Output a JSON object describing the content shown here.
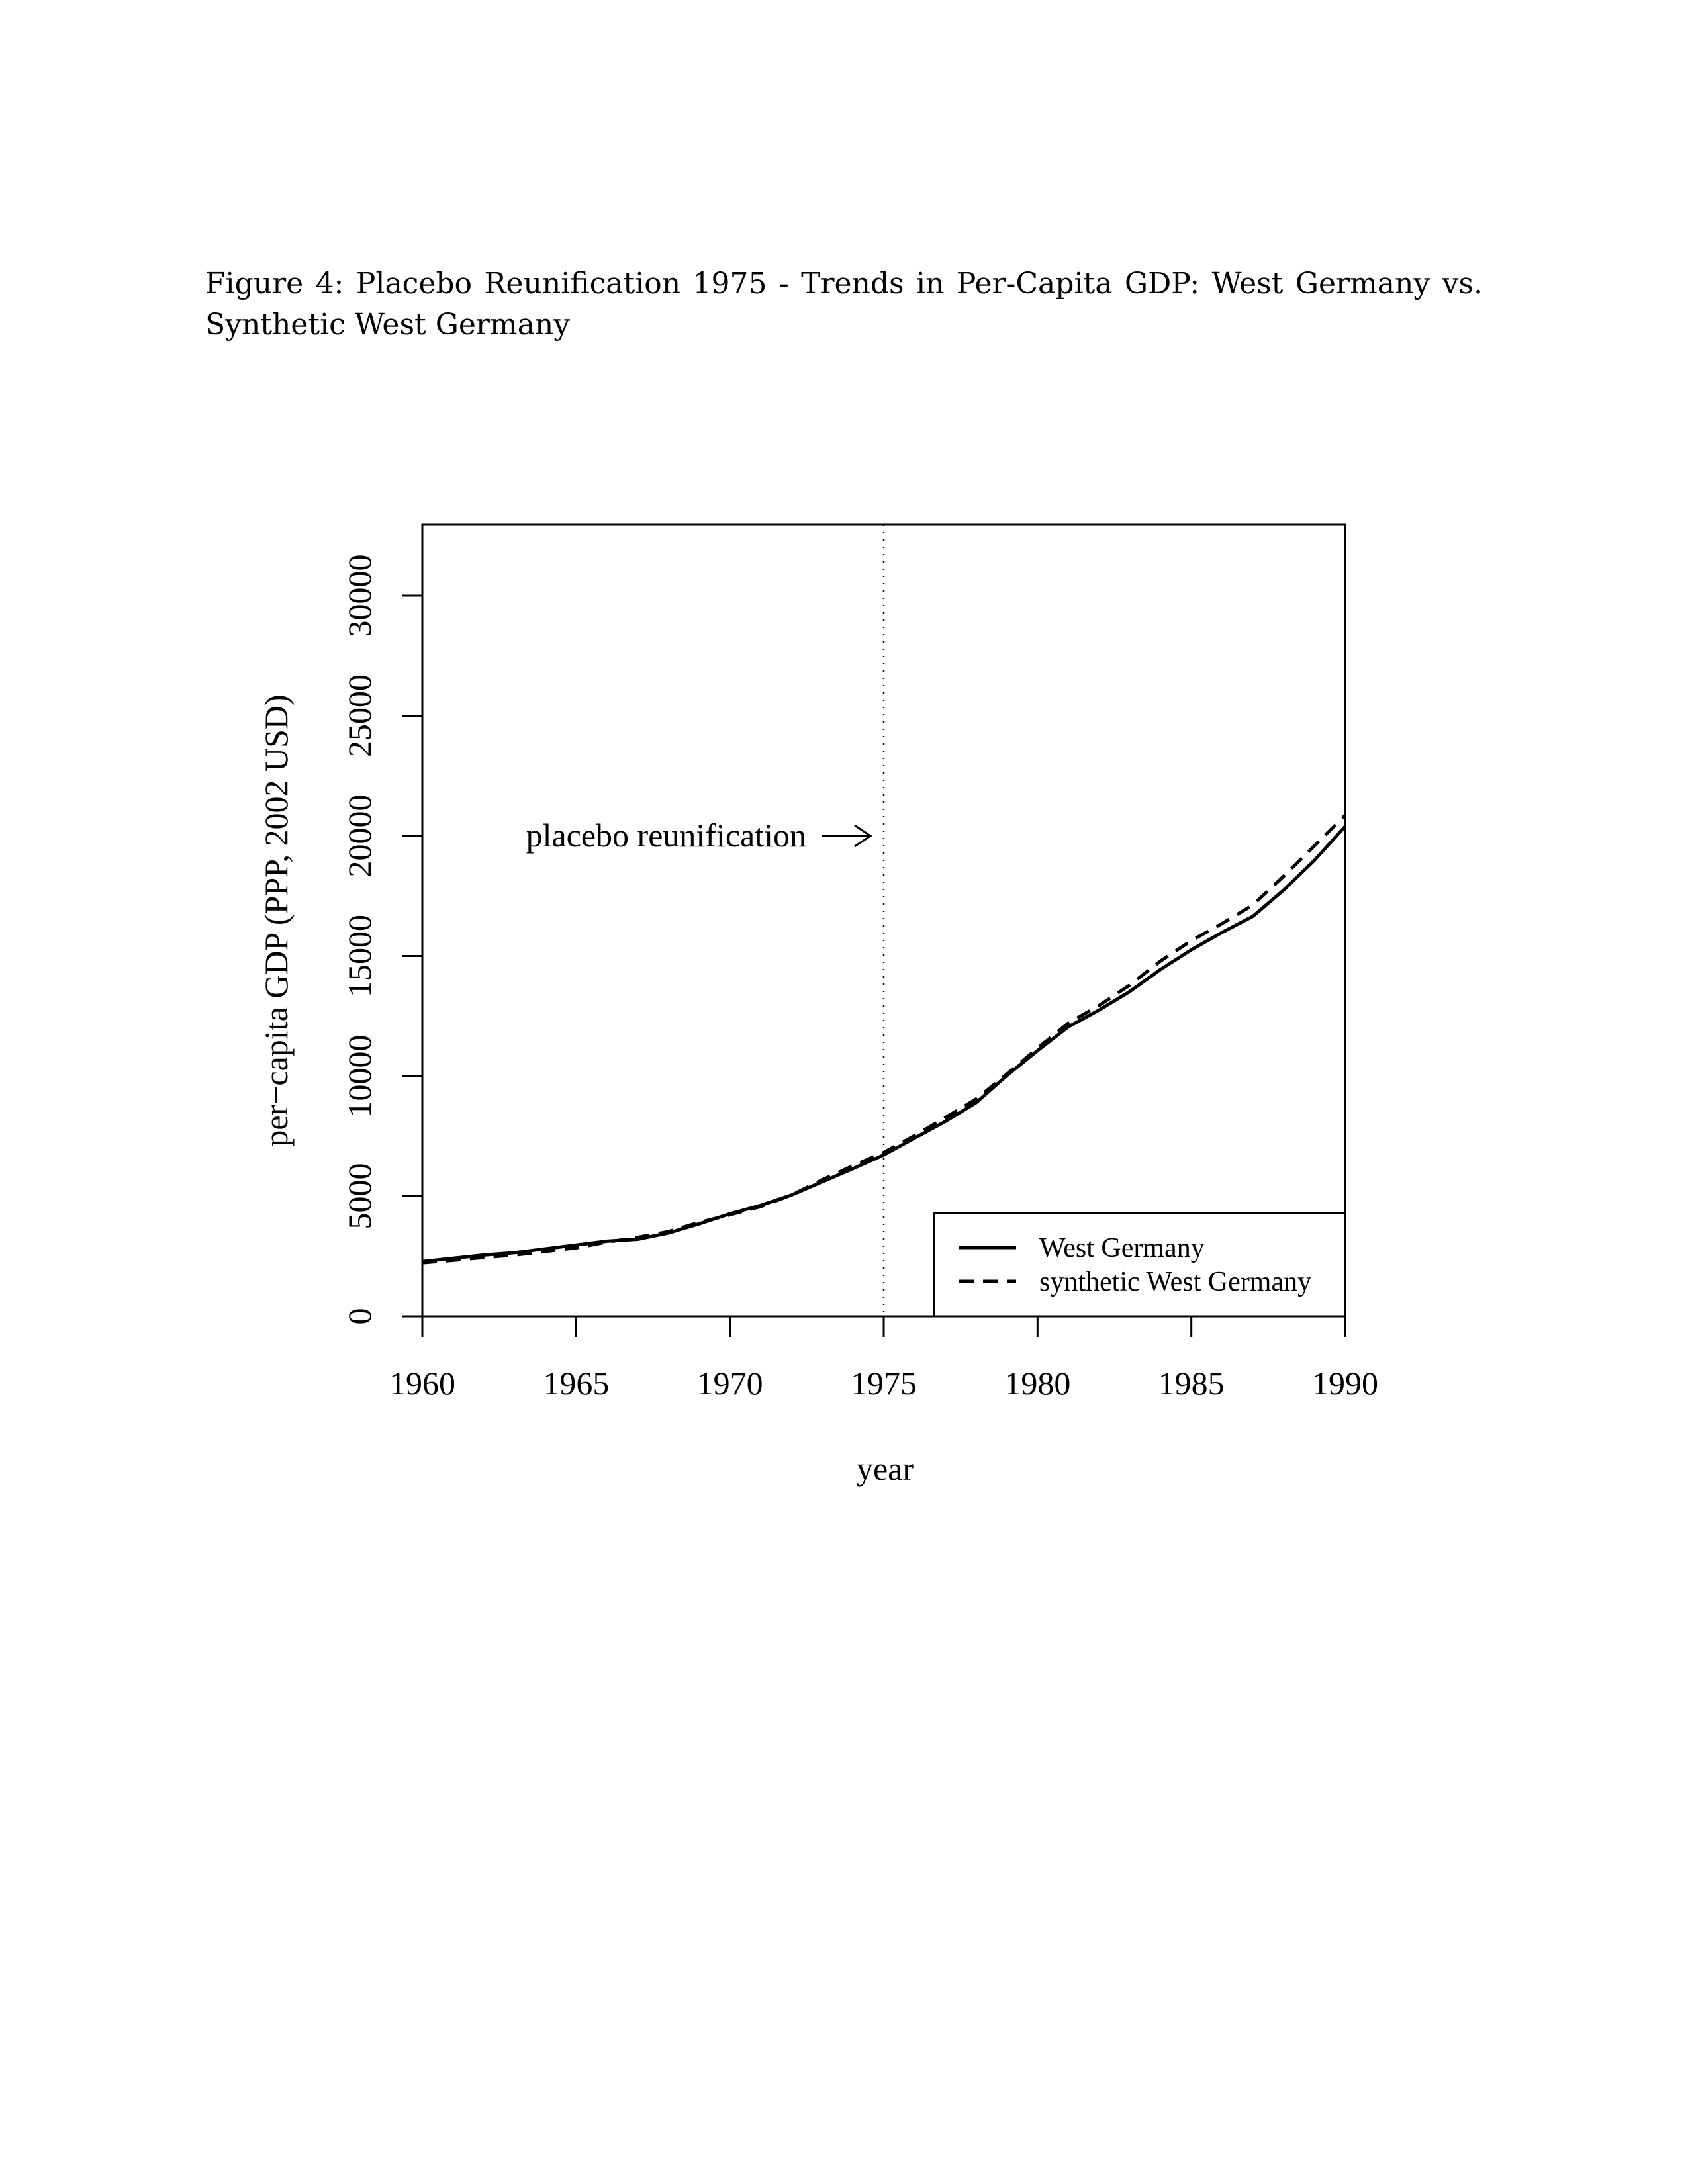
{
  "figure": {
    "caption_line1": "Figure 4: Placebo Reunification 1975 - Trends in Per-Capita GDP: West Germany vs.",
    "caption_line2": "Synthetic West Germany"
  },
  "chart_data": {
    "type": "line",
    "xlabel": "year",
    "ylabel": "per−capita GDP (PPP, 2002 USD)",
    "xlim": [
      1960,
      1990
    ],
    "ylim": [
      0,
      33000
    ],
    "x_ticks": [
      "1960",
      "1965",
      "1970",
      "1975",
      "1980",
      "1985",
      "1990"
    ],
    "y_ticks": [
      "0",
      "5000",
      "10000",
      "15000",
      "20000",
      "25000",
      "30000"
    ],
    "x": [
      1960,
      1961,
      1962,
      1963,
      1964,
      1965,
      1966,
      1967,
      1968,
      1969,
      1970,
      1971,
      1972,
      1973,
      1974,
      1975,
      1976,
      1977,
      1978,
      1979,
      1980,
      1981,
      1982,
      1983,
      1984,
      1985,
      1986,
      1987,
      1988,
      1989,
      1990
    ],
    "series": [
      {
        "name": "West Germany",
        "line_style": "solid",
        "color": "#000000",
        "values": [
          2280,
          2420,
          2550,
          2650,
          2810,
          2970,
          3130,
          3210,
          3470,
          3850,
          4270,
          4620,
          5050,
          5600,
          6150,
          6720,
          7420,
          8110,
          8890,
          10020,
          11060,
          12050,
          12750,
          13520,
          14440,
          15260,
          15980,
          16650,
          17740,
          18980,
          20390
        ]
      },
      {
        "name": "synthetic West Germany",
        "line_style": "dashed",
        "color": "#000000",
        "values": [
          2230,
          2330,
          2450,
          2550,
          2700,
          2850,
          3090,
          3290,
          3530,
          3910,
          4230,
          4570,
          5050,
          5680,
          6270,
          6820,
          7520,
          8270,
          9040,
          10080,
          11160,
          12200,
          12940,
          13790,
          14790,
          15640,
          16350,
          17120,
          18320,
          19580,
          20850
        ]
      }
    ],
    "vline": {
      "x": 1975,
      "style": "dotted"
    },
    "annotation": {
      "text": "placebo reunification",
      "x": 1975,
      "y": 20000
    },
    "legend_position": "bottom-right",
    "grid": false
  }
}
